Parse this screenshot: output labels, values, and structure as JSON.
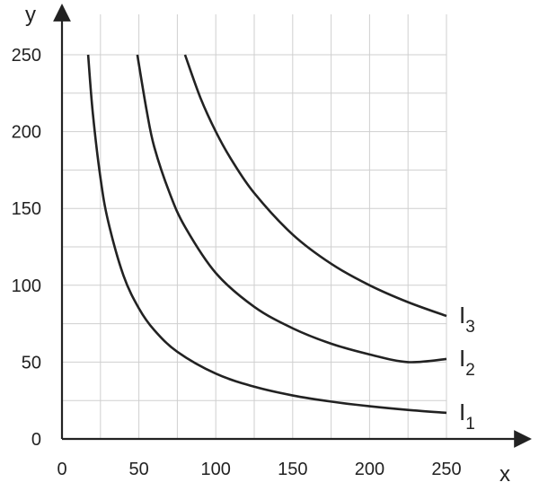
{
  "chart_data": {
    "type": "line",
    "title": "",
    "xlabel": "x",
    "ylabel": "y",
    "xlim": [
      0,
      250
    ],
    "ylim": [
      0,
      250
    ],
    "x_ticks": [
      0,
      50,
      100,
      150,
      200,
      250
    ],
    "y_ticks": [
      0,
      50,
      100,
      150,
      200,
      250
    ],
    "x_tick_labels": [
      "0",
      "50",
      "100",
      "150",
      "200",
      "250"
    ],
    "y_tick_labels": [
      "0",
      "50",
      "100",
      "150",
      "200",
      "250"
    ],
    "grid": true,
    "grid_step": 25,
    "series": [
      {
        "name": "I",
        "subscript": "1",
        "x": [
          17,
          20,
          25,
          30,
          40,
          50,
          60,
          75,
          100,
          125,
          150,
          175,
          200,
          225,
          250
        ],
        "y": [
          250,
          212.5,
          170,
          141.7,
          106.3,
          85,
          70.8,
          56.7,
          42.5,
          34,
          28.3,
          24.3,
          21.3,
          18.9,
          17
        ]
      },
      {
        "name": "I",
        "subscript": "2",
        "x": [
          49,
          55,
          60,
          70,
          80,
          100,
          125,
          150,
          175,
          200,
          225,
          250
        ],
        "y": [
          250,
          214,
          190,
          160,
          138,
          108,
          86,
          72,
          62,
          55,
          50,
          52
        ]
      },
      {
        "name": "I",
        "subscript": "3",
        "x": [
          80,
          90,
          100,
          110,
          125,
          150,
          175,
          200,
          225,
          250
        ],
        "y": [
          250,
          222,
          200,
          182,
          160,
          133,
          114,
          100,
          89,
          80
        ]
      }
    ]
  }
}
